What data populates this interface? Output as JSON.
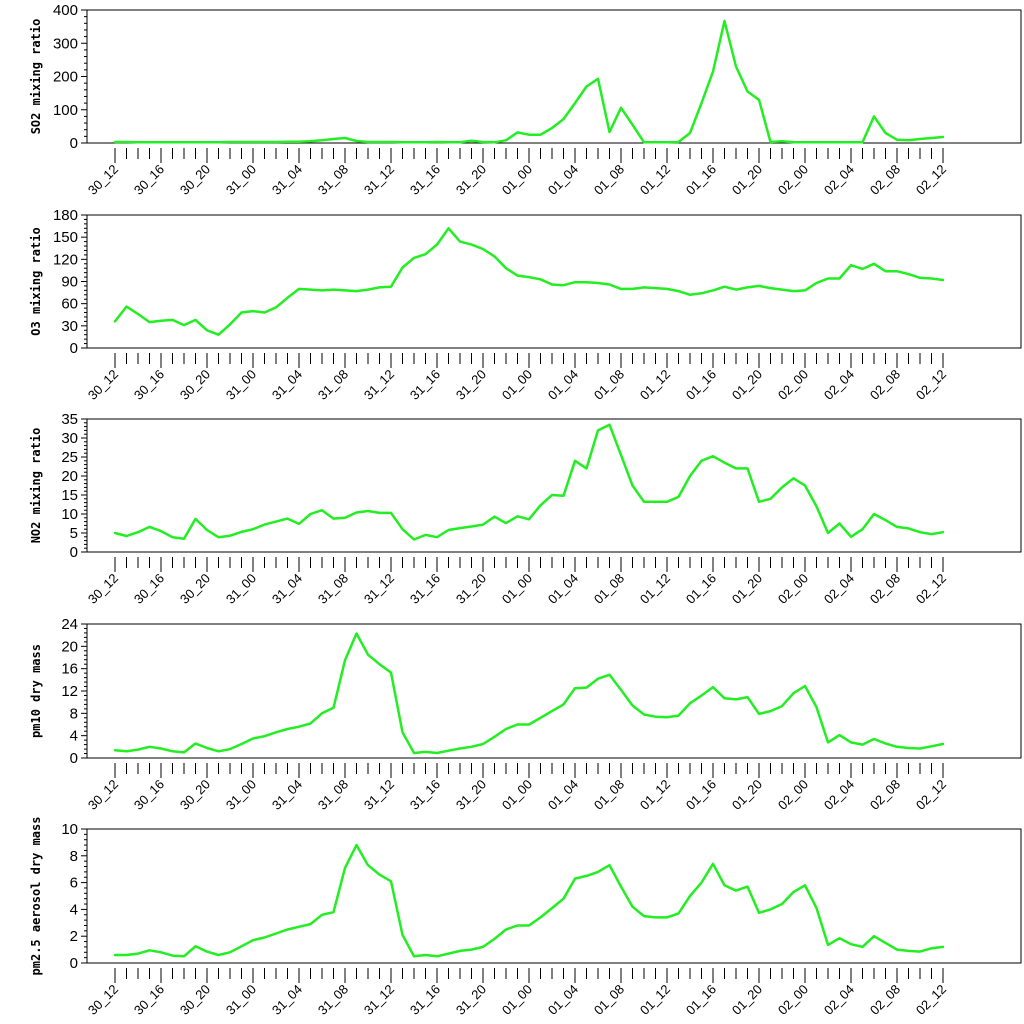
{
  "colors": {
    "line": "#22ee22",
    "axis": "#000000",
    "background": "#ffffff"
  },
  "x_tick_labels": [
    "30_12",
    "30_16",
    "30_20",
    "31_00",
    "31_04",
    "31_08",
    "31_12",
    "31_16",
    "31_20",
    "01_00",
    "01_04",
    "01_08",
    "01_12",
    "01_16",
    "01_20",
    "02_00",
    "02_04",
    "02_08",
    "02_12"
  ],
  "chart_data": [
    {
      "type": "line",
      "ylabel": "SO2 mixing ratio",
      "ylim": [
        0,
        400
      ],
      "yticks": [
        0,
        100,
        200,
        300,
        400
      ],
      "x": [
        "30_12",
        "30_13",
        "30_14",
        "30_15",
        "30_16",
        "30_17",
        "30_18",
        "30_19",
        "30_20",
        "30_21",
        "30_22",
        "30_23",
        "31_00",
        "31_01",
        "31_02",
        "31_03",
        "31_04",
        "31_05",
        "31_06",
        "31_07",
        "31_08",
        "31_09",
        "31_10",
        "31_11",
        "31_12",
        "31_13",
        "31_14",
        "31_15",
        "31_16",
        "31_17",
        "31_18",
        "31_19",
        "31_20",
        "31_21",
        "31_22",
        "31_23",
        "01_00",
        "01_01",
        "01_02",
        "01_03",
        "01_04",
        "01_05",
        "01_06",
        "01_07",
        "01_08",
        "01_09",
        "01_10",
        "01_11",
        "01_12",
        "01_13",
        "01_14",
        "01_15",
        "01_16",
        "01_17",
        "01_18",
        "01_19",
        "01_20",
        "01_21",
        "01_22",
        "01_23",
        "02_00",
        "02_01",
        "02_02",
        "02_03",
        "02_04",
        "02_05",
        "02_06",
        "02_07",
        "02_08",
        "02_09",
        "02_10",
        "02_11",
        "02_12"
      ],
      "series": [
        {
          "values": [
            3,
            3,
            2,
            2,
            2,
            2,
            2,
            2,
            2,
            2,
            3,
            3,
            3,
            3,
            3,
            4,
            4,
            5,
            8,
            12,
            15,
            6,
            3,
            3,
            3,
            2,
            2,
            2,
            3,
            2,
            2,
            7,
            3,
            2,
            8,
            32,
            25,
            25,
            45,
            72,
            120,
            170,
            193,
            33,
            106,
            55,
            2,
            2,
            2,
            3,
            30,
            120,
            215,
            367,
            230,
            155,
            130,
            3,
            5,
            2,
            2,
            2,
            2,
            2,
            2,
            2,
            80,
            30,
            10,
            8,
            12,
            15,
            18
          ]
        }
      ]
    },
    {
      "type": "line",
      "ylabel": "O3 mixing ratio",
      "ylim": [
        0,
        180
      ],
      "yticks": [
        0,
        30,
        60,
        90,
        120,
        150,
        180
      ],
      "x": [
        "30_12",
        "30_13",
        "30_14",
        "30_15",
        "30_16",
        "30_17",
        "30_18",
        "30_19",
        "30_20",
        "30_21",
        "30_22",
        "30_23",
        "31_00",
        "31_01",
        "31_02",
        "31_03",
        "31_04",
        "31_05",
        "31_06",
        "31_07",
        "31_08",
        "31_09",
        "31_10",
        "31_11",
        "31_12",
        "31_13",
        "31_14",
        "31_15",
        "31_16",
        "31_17",
        "31_18",
        "31_19",
        "31_20",
        "31_21",
        "31_22",
        "31_23",
        "01_00",
        "01_01",
        "01_02",
        "01_03",
        "01_04",
        "01_05",
        "01_06",
        "01_07",
        "01_08",
        "01_09",
        "01_10",
        "01_11",
        "01_12",
        "01_13",
        "01_14",
        "01_15",
        "01_16",
        "01_17",
        "01_18",
        "01_19",
        "01_20",
        "01_21",
        "01_22",
        "01_23",
        "02_00",
        "02_01",
        "02_02",
        "02_03",
        "02_04",
        "02_05",
        "02_06",
        "02_07",
        "02_08",
        "02_09",
        "02_10",
        "02_11",
        "02_12"
      ],
      "series": [
        {
          "values": [
            36,
            56,
            46,
            35,
            37,
            38,
            31,
            38,
            24,
            18,
            32,
            48,
            50,
            48,
            55,
            68,
            80,
            79,
            78,
            79,
            78,
            77,
            79,
            82,
            83,
            109,
            122,
            127,
            140,
            162,
            144,
            140,
            134,
            124,
            108,
            98,
            96,
            93,
            86,
            85,
            89,
            89,
            88,
            86,
            80,
            80,
            82,
            81,
            80,
            77,
            72,
            74,
            78,
            83,
            79,
            82,
            84,
            81,
            79,
            77,
            78,
            88,
            94,
            94,
            112,
            107,
            114,
            104,
            104,
            100,
            95,
            94,
            92
          ]
        }
      ]
    },
    {
      "type": "line",
      "ylabel": "NO2 mixing ratio",
      "ylim": [
        0,
        35
      ],
      "yticks": [
        0,
        5,
        10,
        15,
        20,
        25,
        30,
        35
      ],
      "x": [
        "30_12",
        "30_13",
        "30_14",
        "30_15",
        "30_16",
        "30_17",
        "30_18",
        "30_19",
        "30_20",
        "30_21",
        "30_22",
        "30_23",
        "31_00",
        "31_01",
        "31_02",
        "31_03",
        "31_04",
        "31_05",
        "31_06",
        "31_07",
        "31_08",
        "31_09",
        "31_10",
        "31_11",
        "31_12",
        "31_13",
        "31_14",
        "31_15",
        "31_16",
        "31_17",
        "31_18",
        "31_19",
        "31_20",
        "31_21",
        "31_22",
        "31_23",
        "01_00",
        "01_01",
        "01_02",
        "01_03",
        "01_04",
        "01_05",
        "01_06",
        "01_07",
        "01_08",
        "01_09",
        "01_10",
        "01_11",
        "01_12",
        "01_13",
        "01_14",
        "01_15",
        "01_16",
        "01_17",
        "01_18",
        "01_19",
        "01_20",
        "01_21",
        "01_22",
        "01_23",
        "02_00",
        "02_01",
        "02_02",
        "02_03",
        "02_04",
        "02_05",
        "02_06",
        "02_07",
        "02_08",
        "02_09",
        "02_10",
        "02_11",
        "02_12"
      ],
      "series": [
        {
          "values": [
            5,
            4.2,
            5.2,
            6.6,
            5.5,
            3.9,
            3.5,
            8.7,
            5.8,
            3.9,
            4.3,
            5.3,
            6,
            7.2,
            8,
            8.8,
            7.4,
            10,
            11,
            8.8,
            9,
            10.4,
            10.8,
            10.3,
            10.3,
            6,
            3.3,
            4.5,
            3.9,
            5.8,
            6.3,
            6.7,
            7.2,
            9.3,
            7.6,
            9.4,
            8.6,
            12.3,
            15,
            14.8,
            24,
            22,
            32,
            33.5,
            25.5,
            17.5,
            13.2,
            13.2,
            13.2,
            14.5,
            20,
            24,
            25.2,
            23.5,
            22,
            22,
            13.2,
            14,
            17,
            19.4,
            17.5,
            12,
            5,
            7.5,
            4,
            6,
            10,
            8.4,
            6.6,
            6.2,
            5.2,
            4.7,
            5.2
          ]
        }
      ]
    },
    {
      "type": "line",
      "ylabel": "pm10 dry mass",
      "ylim": [
        0,
        24
      ],
      "yticks": [
        0,
        4,
        8,
        12,
        16,
        20,
        24
      ],
      "x": [
        "30_12",
        "30_13",
        "30_14",
        "30_15",
        "30_16",
        "30_17",
        "30_18",
        "30_19",
        "30_20",
        "30_21",
        "30_22",
        "30_23",
        "31_00",
        "31_01",
        "31_02",
        "31_03",
        "31_04",
        "31_05",
        "31_06",
        "31_07",
        "31_08",
        "31_09",
        "31_10",
        "31_11",
        "31_12",
        "31_13",
        "31_14",
        "31_15",
        "31_16",
        "31_17",
        "31_18",
        "31_19",
        "31_20",
        "31_21",
        "31_22",
        "31_23",
        "01_00",
        "01_01",
        "01_02",
        "01_03",
        "01_04",
        "01_05",
        "01_06",
        "01_07",
        "01_08",
        "01_09",
        "01_10",
        "01_11",
        "01_12",
        "01_13",
        "01_14",
        "01_15",
        "01_16",
        "01_17",
        "01_18",
        "01_19",
        "01_20",
        "01_21",
        "01_22",
        "01_23",
        "02_00",
        "02_01",
        "02_02",
        "02_03",
        "02_04",
        "02_05",
        "02_06",
        "02_07",
        "02_08",
        "02_09",
        "02_10",
        "02_11",
        "02_12"
      ],
      "series": [
        {
          "values": [
            1.4,
            1.2,
            1.5,
            2,
            1.7,
            1.2,
            1,
            2.6,
            1.8,
            1.2,
            1.6,
            2.5,
            3.5,
            3.9,
            4.6,
            5.2,
            5.6,
            6.2,
            8,
            9,
            17.5,
            22.3,
            18.5,
            16.8,
            15.3,
            4.6,
            0.9,
            1.1,
            0.9,
            1.3,
            1.7,
            2,
            2.5,
            3.8,
            5.2,
            6,
            6,
            7.2,
            8.4,
            9.6,
            12.5,
            12.6,
            14.2,
            14.9,
            12.2,
            9.4,
            7.8,
            7.4,
            7.3,
            7.6,
            9.8,
            11.2,
            12.7,
            10.7,
            10.5,
            10.9,
            7.9,
            8.4,
            9.3,
            11.6,
            12.9,
            9.1,
            2.8,
            4.1,
            2.8,
            2.4,
            3.4,
            2.6,
            2,
            1.8,
            1.7,
            2.1,
            2.5
          ]
        }
      ]
    },
    {
      "type": "line",
      "ylabel": "pm2.5 aerosol dry mass",
      "ylim": [
        0,
        10
      ],
      "yticks": [
        0,
        2,
        4,
        6,
        8,
        10
      ],
      "x": [
        "30_12",
        "30_13",
        "30_14",
        "30_15",
        "30_16",
        "30_17",
        "30_18",
        "30_19",
        "30_20",
        "30_21",
        "30_22",
        "30_23",
        "31_00",
        "31_01",
        "31_02",
        "31_03",
        "31_04",
        "31_05",
        "31_06",
        "31_07",
        "31_08",
        "31_09",
        "31_10",
        "31_11",
        "31_12",
        "31_13",
        "31_14",
        "31_15",
        "31_16",
        "31_17",
        "31_18",
        "31_19",
        "31_20",
        "31_21",
        "31_22",
        "31_23",
        "01_00",
        "01_01",
        "01_02",
        "01_03",
        "01_04",
        "01_05",
        "01_06",
        "01_07",
        "01_08",
        "01_09",
        "01_10",
        "01_11",
        "01_12",
        "01_13",
        "01_14",
        "01_15",
        "01_16",
        "01_17",
        "01_18",
        "01_19",
        "01_20",
        "01_21",
        "01_22",
        "01_23",
        "02_00",
        "02_01",
        "02_02",
        "02_03",
        "02_04",
        "02_05",
        "02_06",
        "02_07",
        "02_08",
        "02_09",
        "02_10",
        "02_11",
        "02_12"
      ],
      "series": [
        {
          "values": [
            0.6,
            0.6,
            0.7,
            0.95,
            0.8,
            0.55,
            0.5,
            1.25,
            0.85,
            0.6,
            0.8,
            1.25,
            1.7,
            1.9,
            2.2,
            2.5,
            2.7,
            2.9,
            3.6,
            3.8,
            7.1,
            8.8,
            7.3,
            6.6,
            6.1,
            2.1,
            0.5,
            0.6,
            0.5,
            0.7,
            0.9,
            1,
            1.2,
            1.8,
            2.5,
            2.8,
            2.8,
            3.4,
            4.1,
            4.8,
            6.3,
            6.5,
            6.8,
            7.3,
            5.7,
            4.2,
            3.5,
            3.4,
            3.4,
            3.7,
            5,
            6,
            7.4,
            5.8,
            5.4,
            5.7,
            3.75,
            4,
            4.4,
            5.3,
            5.8,
            4.1,
            1.35,
            1.85,
            1.4,
            1.2,
            2,
            1.5,
            1,
            0.9,
            0.85,
            1.1,
            1.2
          ]
        }
      ]
    }
  ]
}
